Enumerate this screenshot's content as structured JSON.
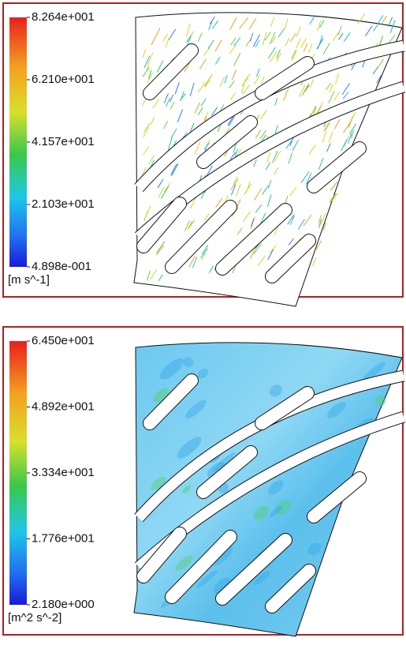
{
  "panels": [
    {
      "legend": {
        "labels": [
          "8.264e+001",
          "6.210e+001",
          "4.157e+001",
          "2.103e+001",
          "4.898e-001"
        ],
        "unit": "[m s^-1]"
      }
    },
    {
      "legend": {
        "labels": [
          "6.450e+001",
          "4.892e+001",
          "3.334e+001",
          "1.776e+001",
          "2.180e+000"
        ],
        "unit": "[m^2 s^-2]"
      }
    }
  ]
}
